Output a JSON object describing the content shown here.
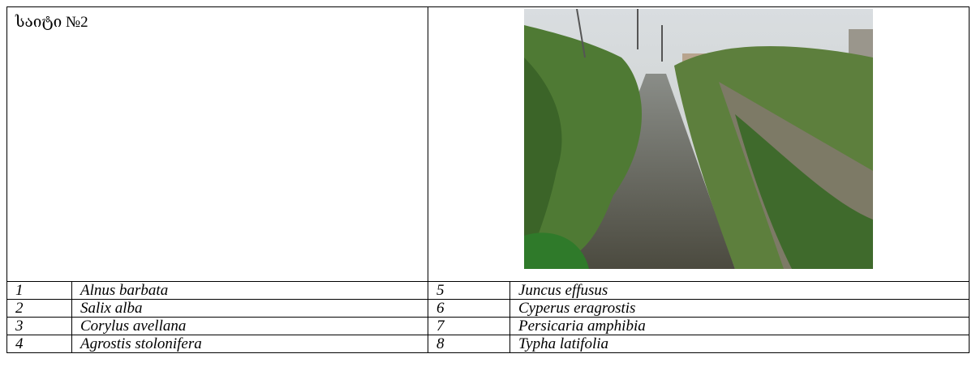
{
  "header": {
    "title": "საიტი №2"
  },
  "table": {
    "rows": [
      [
        "1",
        "Alnus barbata",
        "5",
        "Juncus effusus"
      ],
      [
        "2",
        "Salix alba",
        "6",
        "Cyperus eragrostis"
      ],
      [
        "3",
        "Corylus avellana",
        "7",
        "Persicaria amphibia"
      ],
      [
        "4",
        "Agrostis stolonifera",
        "8",
        "Typha latifolia"
      ]
    ]
  }
}
